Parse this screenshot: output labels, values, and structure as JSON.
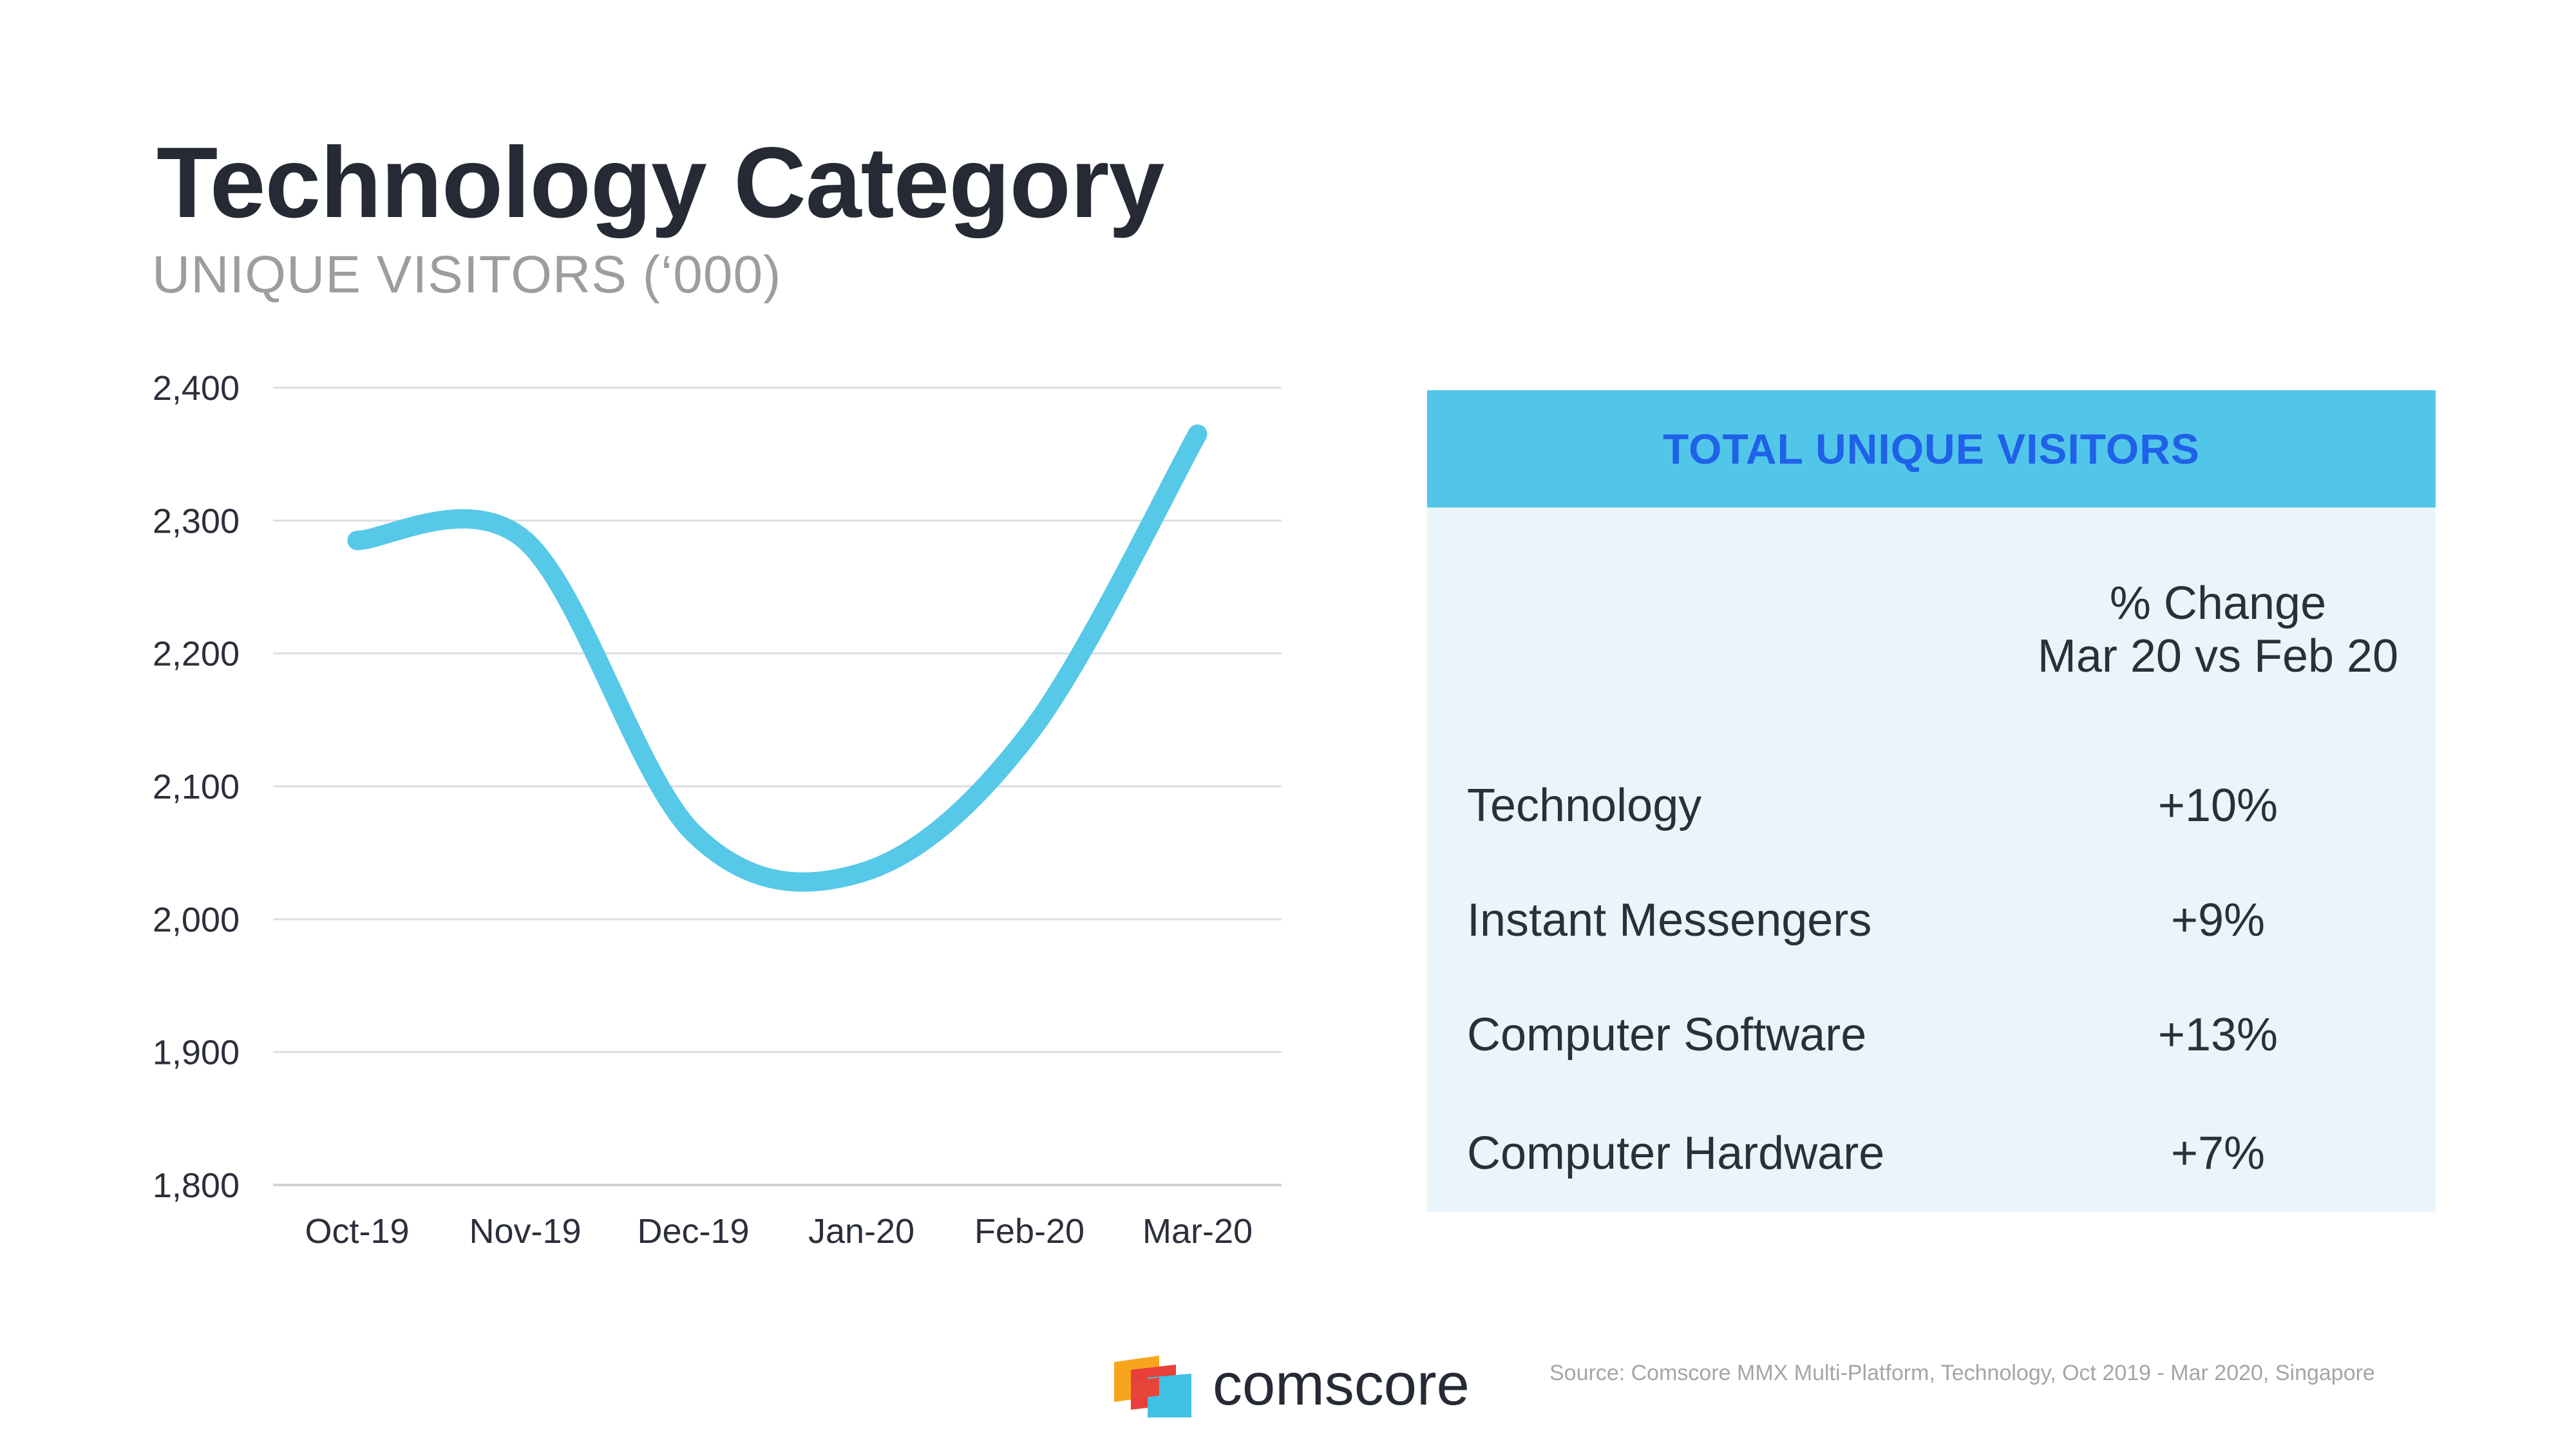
{
  "header": {
    "title": "Technology Category",
    "subtitle": "UNIQUE VISITORS (‘000)"
  },
  "chart_data": {
    "type": "line",
    "categories": [
      "Oct-19",
      "Nov-19",
      "Dec-19",
      "Jan-20",
      "Feb-20",
      "Mar-20"
    ],
    "series": [
      {
        "values": [
          2285,
          2285,
          2065,
          2035,
          2140,
          2365
        ]
      }
    ],
    "y_ticks": [
      "1,800",
      "1,900",
      "2,000",
      "2,100",
      "2,200",
      "2,300",
      "2,400"
    ],
    "ylim": [
      1800,
      2400
    ],
    "grid": true,
    "line_color": "#56c8e8"
  },
  "summary_table": {
    "header": "TOTAL UNIQUE VISITORS",
    "column_header_line1": "% Change",
    "column_header_line2": "Mar 20 vs Feb 20",
    "rows": [
      {
        "category": "Technology",
        "change": "+10%"
      },
      {
        "category": "Instant Messengers",
        "change": "+9%"
      },
      {
        "category": "Computer Software",
        "change": "+13%"
      },
      {
        "category": "Computer Hardware",
        "change": "+7%"
      }
    ]
  },
  "footer": {
    "brand": "comscore",
    "source": "Source: Comscore MMX Multi-Platform, Technology, Oct 2019 - Mar 2020, Singapore"
  },
  "colors": {
    "accent_line": "#56c8e8",
    "panel_header": "#52c6e8",
    "panel_header_text": "#1f61e8",
    "panel_bg": "#eaf4fb"
  }
}
